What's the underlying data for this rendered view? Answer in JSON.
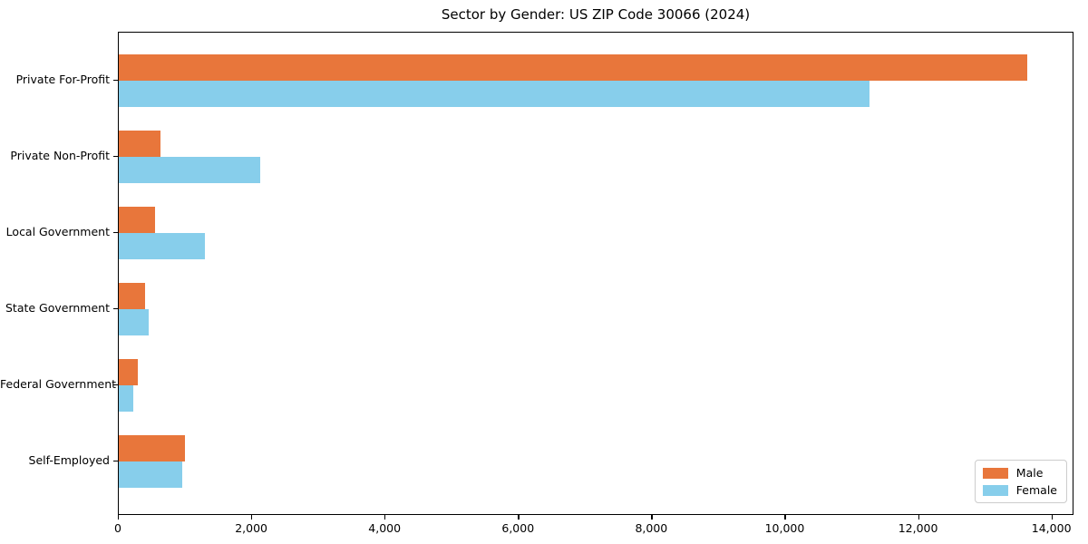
{
  "chart_data": {
    "type": "bar",
    "orientation": "horizontal",
    "title": "Sector by Gender: US ZIP Code 30066 (2024)",
    "categories": [
      "Private For-Profit",
      "Private Non-Profit",
      "Local Government",
      "State Government",
      "Federal Government",
      "Self-Employed"
    ],
    "series": [
      {
        "name": "Male",
        "color": "#e8763b",
        "values": [
          13620,
          620,
          540,
          395,
          280,
          990
        ]
      },
      {
        "name": "Female",
        "color": "#87ceeb",
        "values": [
          11260,
          2120,
          1290,
          450,
          215,
          950
        ]
      }
    ],
    "xlabel": "",
    "ylabel": "",
    "xlim": [
      0,
      14290
    ],
    "xticks": [
      0,
      2000,
      4000,
      6000,
      8000,
      10000,
      12000,
      14000
    ],
    "xtick_labels": [
      "0",
      "2,000",
      "4,000",
      "6,000",
      "8,000",
      "10,000",
      "12,000",
      "14,000"
    ],
    "grid": false,
    "legend": {
      "position": "lower right"
    }
  }
}
